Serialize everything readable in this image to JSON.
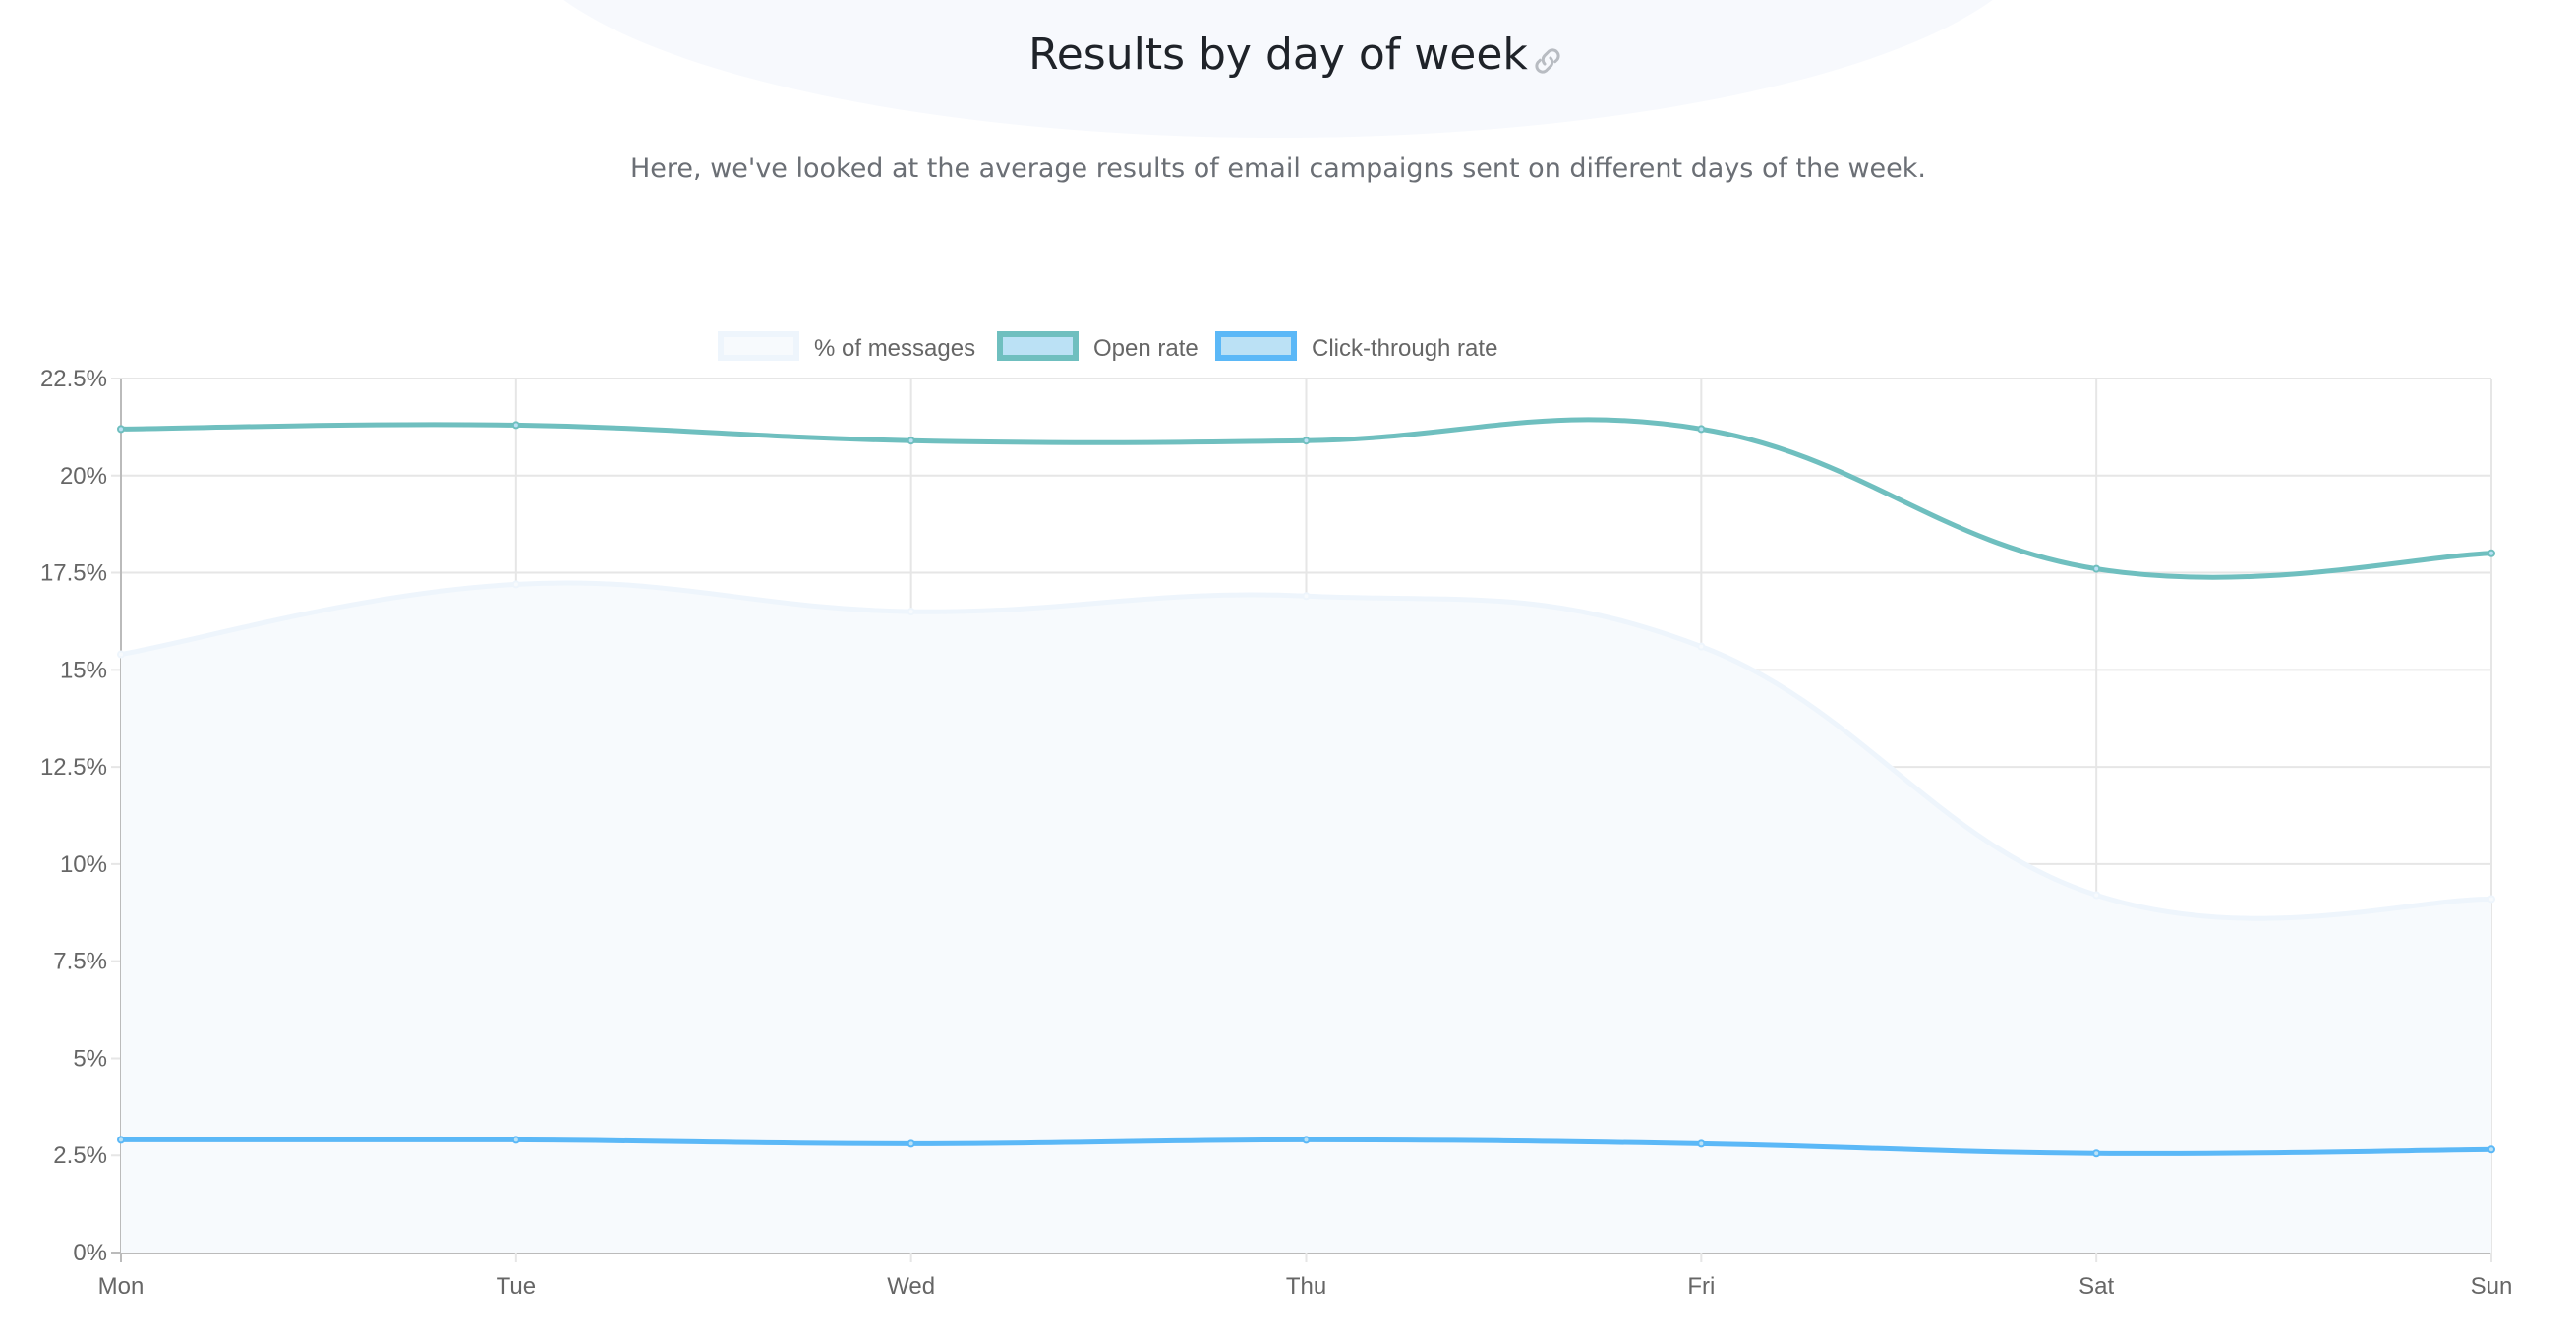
{
  "header": {
    "title": "Results by day of week",
    "link_icon": "link-icon",
    "subtitle": "Here, we've looked at the average results of email campaigns sent on different days of the week."
  },
  "chart_data": {
    "type": "line",
    "categories": [
      "Mon",
      "Tue",
      "Wed",
      "Thu",
      "Fri",
      "Sat",
      "Sun"
    ],
    "ylim": [
      0,
      22.5
    ],
    "yticks": [
      "0%",
      "2.5%",
      "5%",
      "7.5%",
      "10%",
      "12.5%",
      "15%",
      "17.5%",
      "20%",
      "22.5%"
    ],
    "ytick_values": [
      0,
      2.5,
      5,
      7.5,
      10,
      12.5,
      15,
      17.5,
      20,
      22.5
    ],
    "grid": true,
    "legend_position": "top",
    "series": [
      {
        "name": "% of messages",
        "values": [
          15.4,
          17.2,
          16.5,
          16.9,
          15.6,
          9.2,
          9.1
        ],
        "color": "#eef5fc",
        "fill": "#f7fafd",
        "filled": true
      },
      {
        "name": "Open rate",
        "values": [
          21.2,
          21.3,
          20.9,
          20.9,
          21.2,
          17.6,
          18.0
        ],
        "color": "#6fbfbf",
        "fill": "#bbe1f5",
        "filled": false
      },
      {
        "name": "Click-through rate",
        "values": [
          2.9,
          2.9,
          2.8,
          2.9,
          2.8,
          2.55,
          2.65
        ],
        "color": "#5bb8f7",
        "fill": "#bbe1f5",
        "filled": false
      }
    ]
  }
}
